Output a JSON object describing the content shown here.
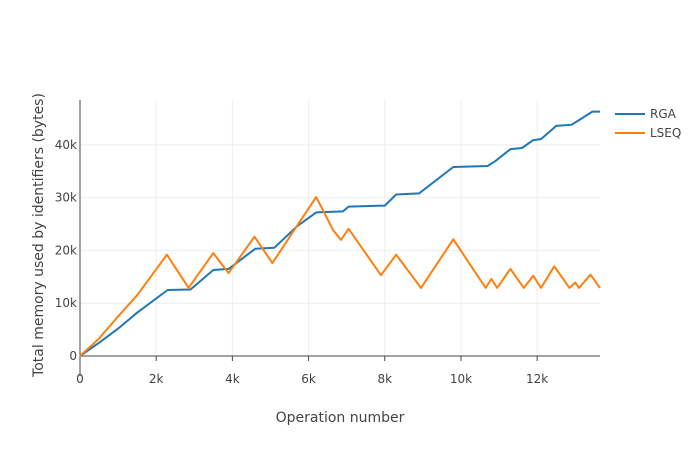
{
  "chart_data": {
    "type": "line",
    "title": "",
    "xlabel": "Operation number",
    "ylabel": "Total memory used by identifiers (bytes)",
    "xlim": [
      0,
      13650
    ],
    "ylim": [
      0,
      48500
    ],
    "grid": true,
    "legend_position": "right",
    "x_ticks": [
      {
        "value": 0,
        "label": "0"
      },
      {
        "value": 2000,
        "label": "2k"
      },
      {
        "value": 4000,
        "label": "4k"
      },
      {
        "value": 6000,
        "label": "6k"
      },
      {
        "value": 8000,
        "label": "8k"
      },
      {
        "value": 10000,
        "label": "10k"
      },
      {
        "value": 12000,
        "label": "12k"
      }
    ],
    "y_ticks": [
      {
        "value": 0,
        "label": "0"
      },
      {
        "value": 10000,
        "label": "10k"
      },
      {
        "value": 20000,
        "label": "20k"
      },
      {
        "value": 30000,
        "label": "30k"
      },
      {
        "value": 40000,
        "label": "40k"
      }
    ],
    "series": [
      {
        "name": "RGA",
        "color": "#1f77b4",
        "points": [
          [
            0,
            0
          ],
          [
            500,
            2500
          ],
          [
            1000,
            5200
          ],
          [
            1500,
            8200
          ],
          [
            2300,
            12500
          ],
          [
            2900,
            12600
          ],
          [
            3500,
            16300
          ],
          [
            3900,
            16500
          ],
          [
            4600,
            20300
          ],
          [
            5100,
            20500
          ],
          [
            5700,
            24600
          ],
          [
            6200,
            27200
          ],
          [
            6900,
            27400
          ],
          [
            7050,
            28300
          ],
          [
            7500,
            28400
          ],
          [
            8000,
            28500
          ],
          [
            8300,
            30600
          ],
          [
            8900,
            30800
          ],
          [
            9800,
            35800
          ],
          [
            10700,
            36000
          ],
          [
            10900,
            36900
          ],
          [
            11300,
            39200
          ],
          [
            11600,
            39400
          ],
          [
            11900,
            40900
          ],
          [
            12100,
            41100
          ],
          [
            12500,
            43600
          ],
          [
            12900,
            43800
          ],
          [
            13100,
            44700
          ],
          [
            13450,
            46300
          ],
          [
            13650,
            46300
          ]
        ]
      },
      {
        "name": "LSEQ",
        "color": "#ff7f0e",
        "points": [
          [
            0,
            0
          ],
          [
            500,
            3300
          ],
          [
            1000,
            7500
          ],
          [
            1500,
            11500
          ],
          [
            2280,
            19200
          ],
          [
            2850,
            12900
          ],
          [
            3500,
            19500
          ],
          [
            3900,
            15700
          ],
          [
            4580,
            22600
          ],
          [
            5050,
            17600
          ],
          [
            5600,
            23600
          ],
          [
            6200,
            30100
          ],
          [
            6650,
            23800
          ],
          [
            6850,
            22000
          ],
          [
            7050,
            24100
          ],
          [
            7900,
            15300
          ],
          [
            8300,
            19200
          ],
          [
            8950,
            12900
          ],
          [
            9800,
            22100
          ],
          [
            10650,
            12900
          ],
          [
            10800,
            14600
          ],
          [
            10950,
            12900
          ],
          [
            11300,
            16500
          ],
          [
            11650,
            12900
          ],
          [
            11900,
            15200
          ],
          [
            12100,
            12900
          ],
          [
            12450,
            17000
          ],
          [
            12850,
            12900
          ],
          [
            13000,
            13900
          ],
          [
            13100,
            12900
          ],
          [
            13400,
            15400
          ],
          [
            13650,
            12900
          ]
        ]
      }
    ]
  }
}
